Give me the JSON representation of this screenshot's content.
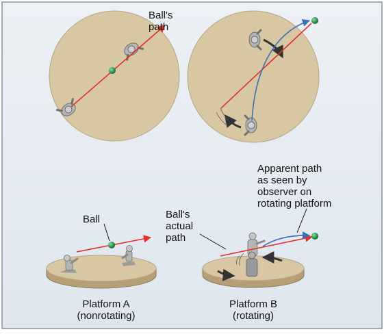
{
  "labels": {
    "balls_path_top": "Ball's\npath",
    "ball": "Ball",
    "balls_actual_path": "Ball's\nactual\npath",
    "apparent_path": "Apparent path\nas seen by\nobserver on\nrotating platform",
    "platform_a": "Platform A\n(nonrotating)",
    "platform_b": "Platform B\n(rotating)"
  },
  "colors": {
    "panel_background": "#e6ecf2",
    "panel_border": "#8a9099",
    "platform_top": "#d8c7a3",
    "platform_edge": "#b49f76",
    "actual_path": "#e0302a",
    "apparent_path": "#3d6fb5",
    "ball": "#1c9a4a",
    "figure": "#a9a9a9",
    "rotation_arrow": "#333333"
  }
}
